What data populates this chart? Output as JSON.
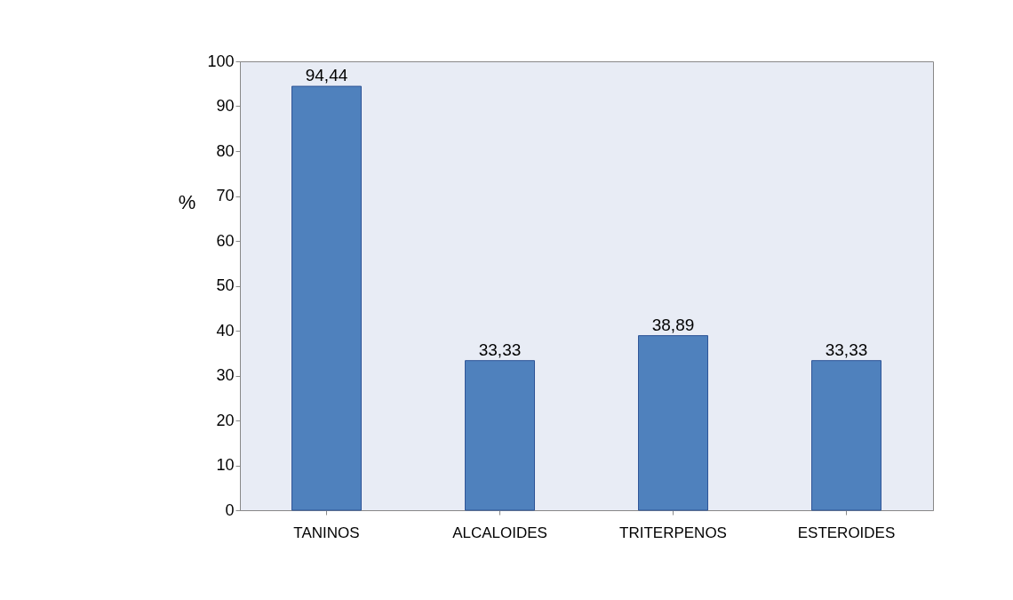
{
  "chart_data": {
    "type": "bar",
    "ylabel": "%",
    "categories": [
      "TANINOS",
      "ALCALOIDES",
      "TRITERPENOS",
      "ESTEROIDES"
    ],
    "values": [
      94.44,
      33.33,
      38.89,
      33.33
    ],
    "value_labels": [
      "94,44",
      "33,33",
      "38,89",
      "33,33"
    ],
    "color": "#4f81bd",
    "ylim": [
      0,
      100
    ],
    "yticks": [
      0,
      10,
      20,
      30,
      40,
      50,
      60,
      70,
      80,
      90,
      100
    ],
    "grid": false
  }
}
